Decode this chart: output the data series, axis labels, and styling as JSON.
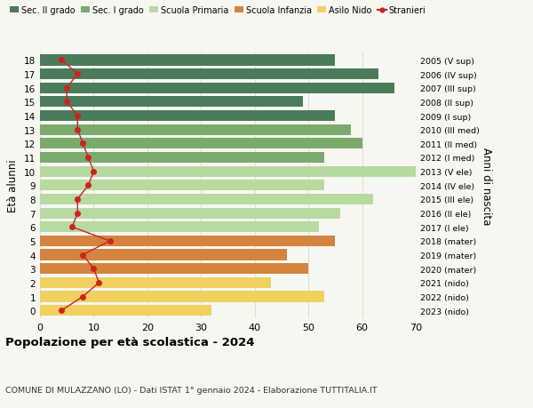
{
  "ages": [
    18,
    17,
    16,
    15,
    14,
    13,
    12,
    11,
    10,
    9,
    8,
    7,
    6,
    5,
    4,
    3,
    2,
    1,
    0
  ],
  "right_labels": [
    "2005 (V sup)",
    "2006 (IV sup)",
    "2007 (III sup)",
    "2008 (II sup)",
    "2009 (I sup)",
    "2010 (III med)",
    "2011 (II med)",
    "2012 (I med)",
    "2013 (V ele)",
    "2014 (IV ele)",
    "2015 (III ele)",
    "2016 (II ele)",
    "2017 (I ele)",
    "2018 (mater)",
    "2019 (mater)",
    "2020 (mater)",
    "2021 (nido)",
    "2022 (nido)",
    "2023 (nido)"
  ],
  "bar_values": [
    55,
    63,
    66,
    49,
    55,
    58,
    60,
    53,
    71,
    53,
    62,
    56,
    52,
    55,
    46,
    50,
    43,
    53,
    32
  ],
  "bar_colors": [
    "#4a7c59",
    "#4a7c59",
    "#4a7c59",
    "#4a7c59",
    "#4a7c59",
    "#7aab6d",
    "#7aab6d",
    "#7aab6d",
    "#b8d9a0",
    "#b8d9a0",
    "#b8d9a0",
    "#b8d9a0",
    "#b8d9a0",
    "#d4843e",
    "#d4843e",
    "#d4843e",
    "#f0d060",
    "#f0d060",
    "#f0d060"
  ],
  "stranieri_values": [
    4,
    7,
    5,
    5,
    7,
    7,
    8,
    9,
    10,
    9,
    7,
    7,
    6,
    13,
    8,
    10,
    11,
    8,
    4
  ],
  "title": "Popolazione per età scolastica - 2024",
  "subtitle": "COMUNE DI MULAZZANO (LO) - Dati ISTAT 1° gennaio 2024 - Elaborazione TUTTITALIA.IT",
  "ylabel": "Età alunni",
  "right_ylabel": "Anni di nascita",
  "xlim": [
    0,
    70
  ],
  "xticks": [
    0,
    10,
    20,
    30,
    40,
    50,
    60,
    70
  ],
  "legend_labels": [
    "Sec. II grado",
    "Sec. I grado",
    "Scuola Primaria",
    "Scuola Infanzia",
    "Asilo Nido",
    "Stranieri"
  ],
  "legend_colors": [
    "#4a7c59",
    "#7aab6d",
    "#b8d9a0",
    "#d4843e",
    "#f0d060",
    "#cc2222"
  ],
  "bg_color": "#f7f7f2",
  "grid_color": "#ddddcc",
  "bar_height": 0.78
}
